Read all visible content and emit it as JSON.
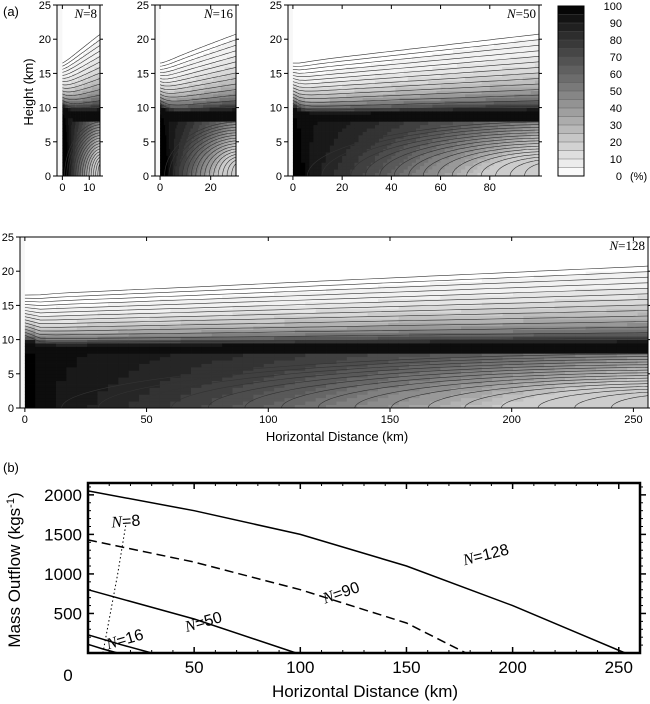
{
  "chart_data": [
    {
      "type": "heatmap",
      "panel": "(a)",
      "ylabel": "Height (km)",
      "xlabel": "Horizontal Distance (km)",
      "ylim": [
        0,
        25
      ],
      "y_ticks": [
        0,
        5,
        10,
        15,
        20,
        25
      ],
      "colorbar": {
        "ticks": [
          100,
          90,
          80,
          70,
          60,
          50,
          40,
          30,
          20,
          10,
          0
        ],
        "unit_label": "(%)",
        "min": 0,
        "max": 100
      },
      "subplots": [
        {
          "label_italic": "N",
          "label_rest": "=8",
          "xlim": [
            -2,
            14
          ],
          "x_ticks": [
            0,
            10
          ],
          "x_tick_labels": [
            "0",
            "10"
          ],
          "extent_km": 14
        },
        {
          "label_italic": "N",
          "label_rest": "=16",
          "xlim": [
            -2,
            30
          ],
          "x_ticks": [
            0,
            20
          ],
          "x_tick_labels": [
            "0",
            "20"
          ],
          "extent_km": 30
        },
        {
          "label_italic": "N",
          "label_rest": "=50",
          "xlim": [
            -2,
            100
          ],
          "x_ticks": [
            0,
            20,
            40,
            60,
            80
          ],
          "x_tick_labels": [
            "0",
            "20",
            "40",
            "60",
            "80"
          ],
          "extent_km": 100
        },
        {
          "label_italic": "N",
          "label_rest": "=128",
          "xlim": [
            -2,
            256
          ],
          "x_ticks": [
            0,
            50,
            100,
            150,
            200,
            250
          ],
          "x_tick_labels": [
            "0",
            "50",
            "100",
            "150",
            "200",
            "250"
          ],
          "extent_km": 256
        }
      ]
    },
    {
      "type": "line",
      "panel": "(b)",
      "ylabel_main": "Mass Outflow (kgs",
      "ylabel_sup": "-1",
      "ylabel_close": ")",
      "xlabel": "Horizontal Distance (km)",
      "xlim": [
        0,
        260
      ],
      "ylim": [
        0,
        2150
      ],
      "x_ticks": [
        50,
        100,
        150,
        200,
        250
      ],
      "x_tick_labels": [
        "50",
        "100",
        "150",
        "200",
        "250"
      ],
      "x_origin_label": "0",
      "y_ticks": [
        500,
        1000,
        1500,
        2000
      ],
      "y_tick_labels": [
        "500",
        "1000",
        "1500",
        "2000"
      ],
      "series": [
        {
          "name": "N=128",
          "style": "solid",
          "x": [
            0,
            50,
            100,
            150,
            200,
            253
          ],
          "y": [
            2050,
            1800,
            1500,
            1100,
            600,
            0
          ]
        },
        {
          "name": "N=90",
          "style": "dashed",
          "x": [
            0,
            50,
            100,
            150,
            178
          ],
          "y": [
            1430,
            1150,
            800,
            380,
            0
          ]
        },
        {
          "name": "N=50",
          "style": "solid",
          "x": [
            0,
            50,
            98
          ],
          "y": [
            800,
            430,
            0
          ]
        },
        {
          "name": "N=16",
          "style": "solid",
          "x": [
            0,
            15,
            30
          ],
          "y": [
            230,
            110,
            0
          ]
        },
        {
          "name": "",
          "style": "solid",
          "x": [
            0,
            7,
            14
          ],
          "y": [
            110,
            50,
            0
          ]
        },
        {
          "name": "N=8",
          "style": "dotted",
          "x": [
            7,
            14,
            18
          ],
          "y": [
            0,
            1000,
            1650
          ]
        }
      ]
    }
  ]
}
